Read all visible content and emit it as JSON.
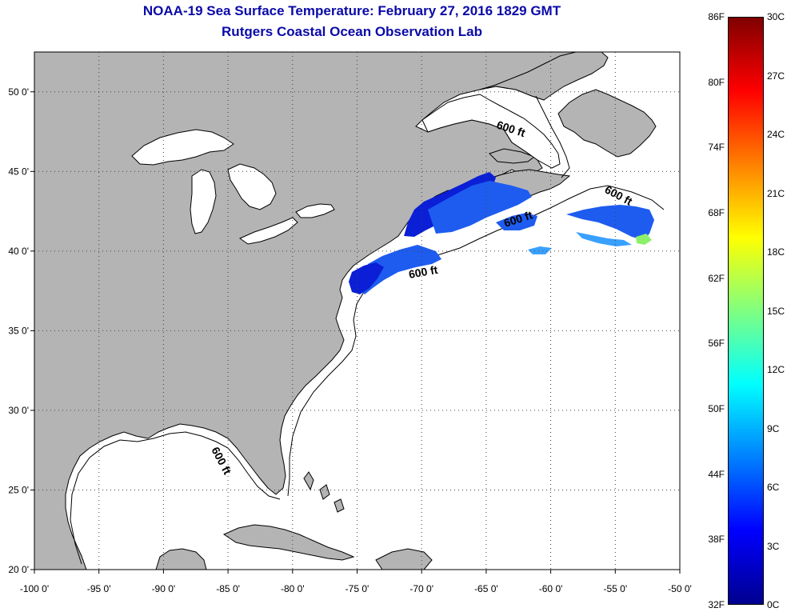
{
  "title": {
    "line1": "NOAA-19 Sea Surface Temperature:  February 27, 2016 1829 GMT",
    "line2": "Rutgers Coastal Ocean Observation Lab"
  },
  "map": {
    "lon_range": [
      -100,
      -50
    ],
    "lat_range": [
      20,
      52.5
    ],
    "lon_ticks": [
      "-100 0'",
      "-95 0'",
      "-90 0'",
      "-85 0'",
      "-80 0'",
      "-75 0'",
      "-70 0'",
      "-65 0'",
      "-60 0'",
      "-55 0'",
      "-50 0'"
    ],
    "lat_ticks": [
      "50 0'",
      "45 0'",
      "40 0'",
      "35 0'",
      "30 0'",
      "25 0'",
      "20 0'"
    ],
    "grid": "dotted",
    "land_color": "#b4b4b4",
    "ocean_color": "#ffffff",
    "isobath_label": "600 ft",
    "isobath_labels": [
      "600 ft",
      "600 ft",
      "600 ft",
      "600 ft",
      "600 ft"
    ]
  },
  "colorbar": {
    "fahrenheit_labels": [
      "86F",
      "80F",
      "74F",
      "68F",
      "62F",
      "56F",
      "50F",
      "44F",
      "38F",
      "32F"
    ],
    "celsius_labels": [
      "30C",
      "27C",
      "24C",
      "21C",
      "18C",
      "15C",
      "12C",
      "9C",
      "6C",
      "3C",
      "0C"
    ],
    "colors": [
      "#00008f",
      "#0000ff",
      "#0080ff",
      "#00ffff",
      "#80ff80",
      "#ffff00",
      "#ff8000",
      "#ff0000",
      "#800000"
    ]
  },
  "sst_colors": {
    "cold": "#0a1fd6",
    "mid": "#1e5cf0",
    "light": "#3aa0ff",
    "warm": "#8ef06a"
  }
}
